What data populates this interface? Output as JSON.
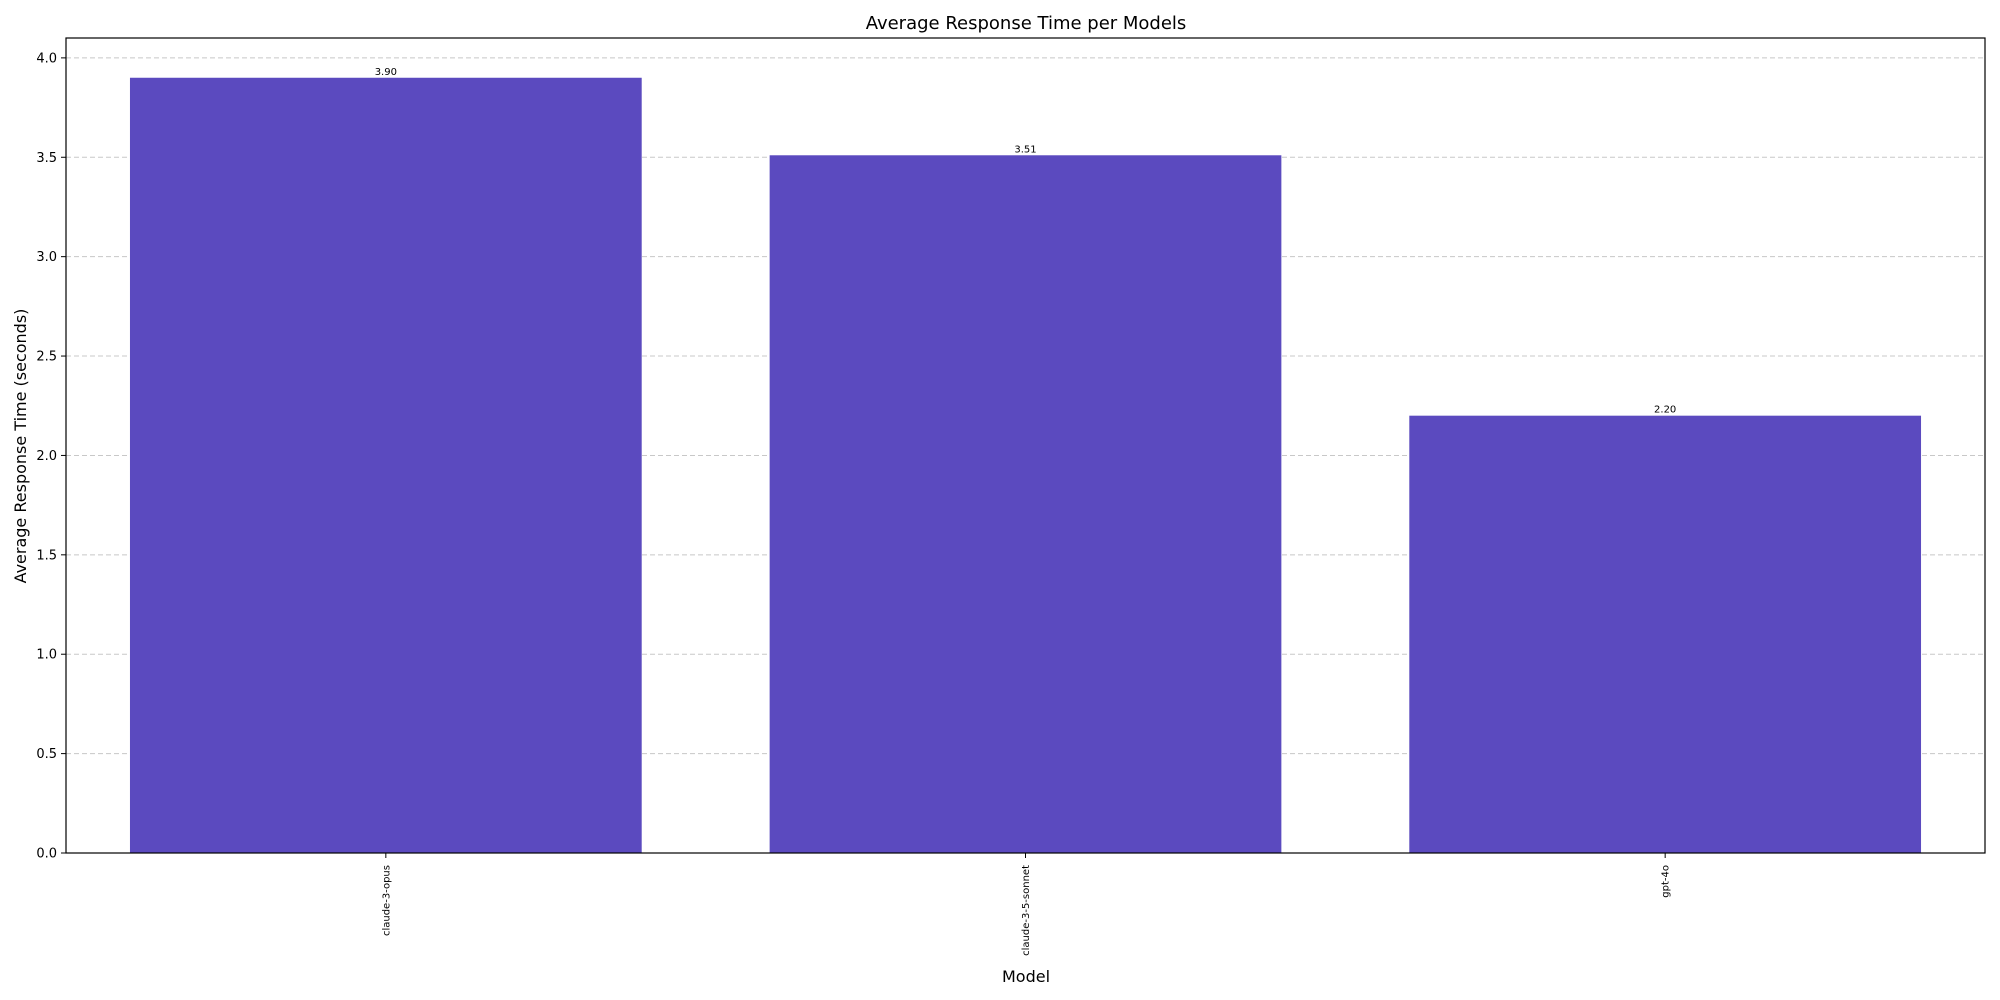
{
  "chart_data": {
    "type": "bar",
    "title": "Average Response Time per Models",
    "xlabel": "Model",
    "ylabel": "Average Response Time (seconds)",
    "categories": [
      "claude-3-opus",
      "claude-3-5-sonnet",
      "gpt-4o"
    ],
    "values": [
      3.9,
      3.51,
      2.2
    ],
    "data_labels": [
      "3.90",
      "3.51",
      "2.20"
    ],
    "ylim": [
      0,
      4.1
    ],
    "yticks": [
      0.0,
      0.5,
      1.0,
      1.5,
      2.0,
      2.5,
      3.0,
      3.5,
      4.0
    ],
    "ytick_labels": [
      "0.0",
      "0.5",
      "1.0",
      "1.5",
      "2.0",
      "2.5",
      "3.0",
      "3.5",
      "4.0"
    ],
    "grid": true,
    "bar_color": "#5b4abf",
    "x_tick_rotation": "vertical"
  }
}
